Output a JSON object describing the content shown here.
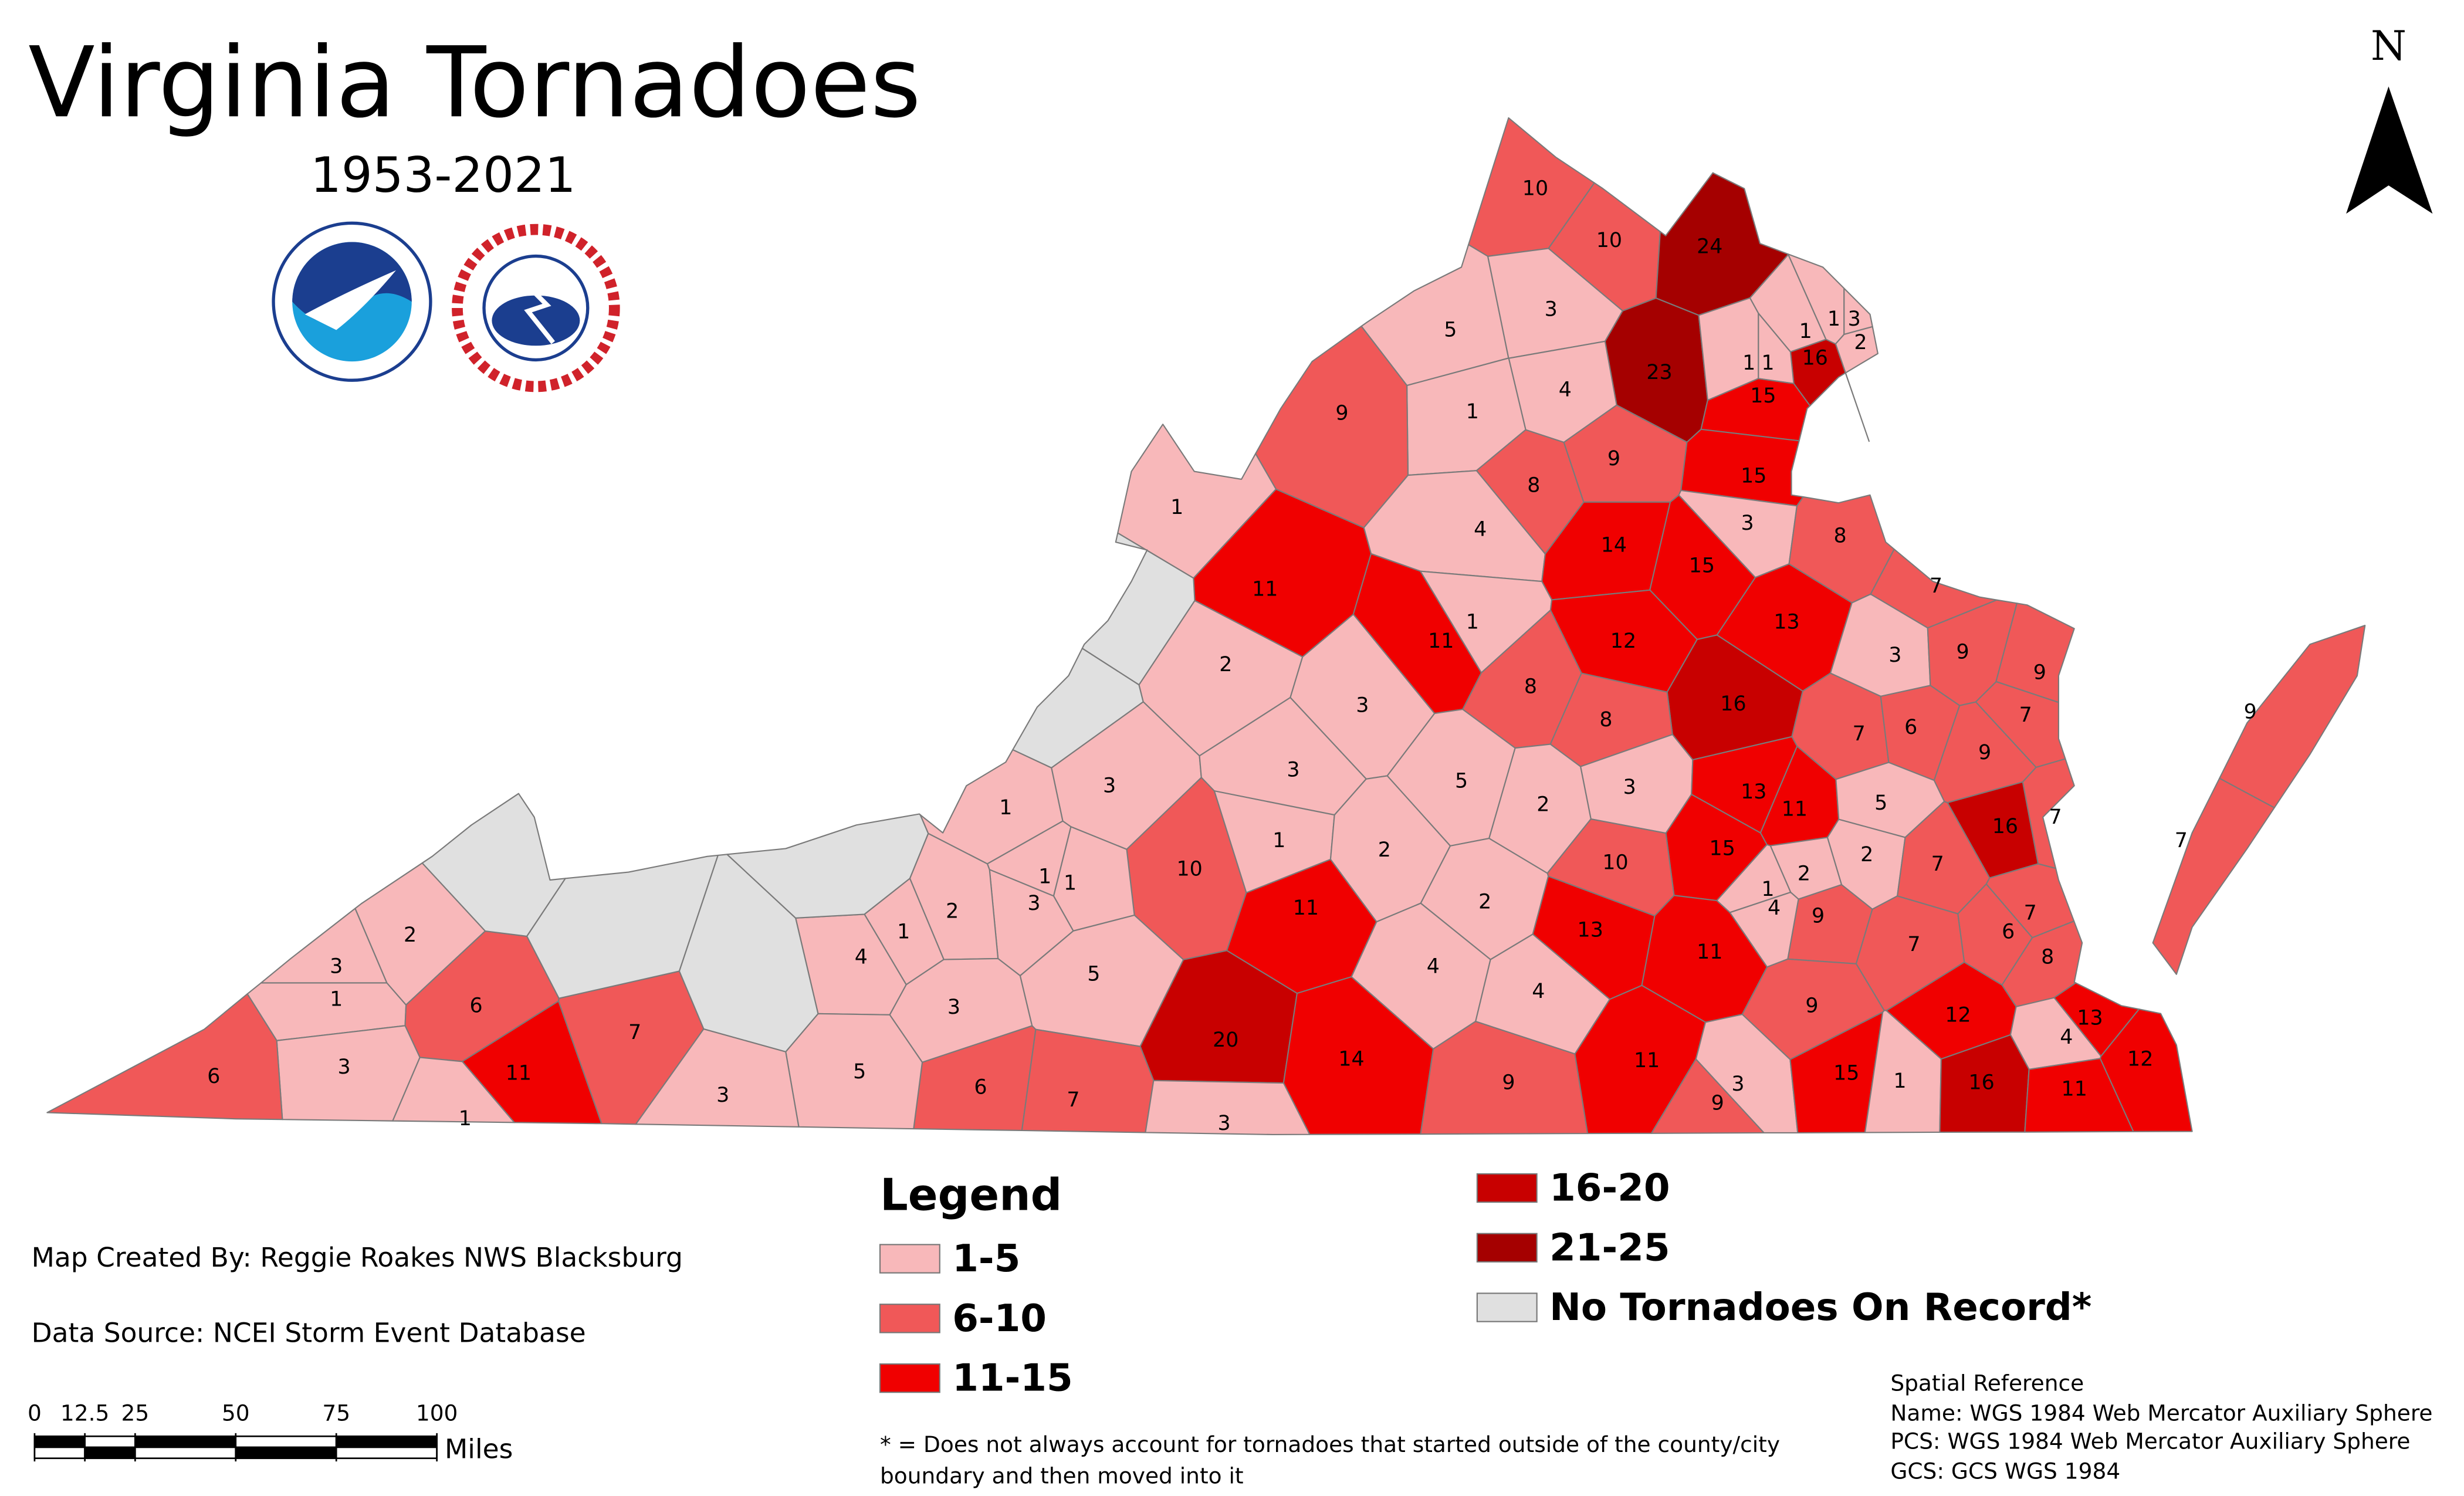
{
  "header": {
    "title": "Virginia Tornadoes",
    "subtitle": "1953-2021",
    "north": "N"
  },
  "legend": {
    "title": "Legend",
    "items": [
      {
        "label": "1-5",
        "color": "#f8b8ba"
      },
      {
        "label": "6-10",
        "color": "#f05858"
      },
      {
        "label": "11-15",
        "color": "#f00000"
      },
      {
        "label": "16-20",
        "color": "#c80000"
      },
      {
        "label": "21-25",
        "color": "#a50000"
      },
      {
        "label": "No Tornadoes On Record*",
        "color": "#e0e0e0"
      }
    ]
  },
  "credits": [
    "Map Created By: Reggie Roakes NWS Blacksburg",
    "Data Source: NCEI Storm Event Database"
  ],
  "footnote": [
    "* = Does not always account for tornadoes that started outside of the county/city",
    "boundary and then moved into it"
  ],
  "scale_bar": {
    "ticks": [
      0,
      12.5,
      25,
      50,
      75,
      100
    ],
    "unit": "Miles"
  },
  "spatial_reference": [
    "Spatial Reference",
    "Name: WGS 1984 Web Mercator Auxiliary Sphere",
    "PCS: WGS 1984 Web Mercator Auxiliary Sphere",
    "GCS: GCS WGS 1984"
  ],
  "counties": [
    {
      "label": 10,
      "color": "#f05858"
    },
    {
      "label": 10,
      "color": "#f05858"
    },
    {
      "label": 24,
      "color": "#a50000"
    },
    {
      "label": 5,
      "color": "#f8b8ba"
    },
    {
      "label": 3,
      "color": "#f8b8ba"
    },
    {
      "label": 23,
      "color": "#a50000"
    },
    {
      "label": 1,
      "color": "#f8b8ba"
    },
    {
      "label": 1,
      "color": "#f8b8ba"
    },
    {
      "label": 3,
      "color": "#f8b8ba"
    },
    {
      "label": 2,
      "color": "#f8b8ba"
    },
    {
      "label": 16,
      "color": "#c80000"
    },
    {
      "label": 1,
      "color": "#f8b8ba"
    },
    {
      "label": 1,
      "color": "#f8b8ba"
    },
    {
      "label": 15,
      "color": "#f00000"
    },
    {
      "label": 4,
      "color": "#f8b8ba"
    },
    {
      "label": 1,
      "color": "#f8b8ba"
    },
    {
      "label": 9,
      "color": "#f05858"
    },
    {
      "label": 8,
      "color": "#f05858"
    },
    {
      "label": 9,
      "color": "#f05858"
    },
    {
      "label": 15,
      "color": "#f00000"
    },
    {
      "label": 3,
      "color": "#f8b8ba"
    },
    {
      "label": 1,
      "color": "#f8b8ba"
    },
    {
      "label": 4,
      "color": "#f8b8ba"
    },
    {
      "label": 14,
      "color": "#f00000"
    },
    {
      "label": 15,
      "color": "#f00000"
    },
    {
      "label": 8,
      "color": "#f05858"
    },
    {
      "label": 7,
      "color": "#f05858"
    },
    {
      "label": 11,
      "color": "#f00000"
    },
    {
      "label": 11,
      "color": "#f00000"
    },
    {
      "label": 1,
      "color": "#f8b8ba"
    },
    {
      "label": 12,
      "color": "#f00000"
    },
    {
      "label": 13,
      "color": "#f00000"
    },
    {
      "label": 3,
      "color": "#f8b8ba"
    },
    {
      "label": 9,
      "color": "#f05858"
    },
    {
      "label": 9,
      "color": "#f05858"
    },
    {
      "label": 7,
      "color": "#f05858"
    },
    {
      "label": 2,
      "color": "#f8b8ba"
    },
    {
      "label": 3,
      "color": "#f8b8ba"
    },
    {
      "label": 8,
      "color": "#f05858"
    },
    {
      "label": 16,
      "color": "#c80000"
    },
    {
      "label": 7,
      "color": "#f05858"
    },
    {
      "label": 6,
      "color": "#f05858"
    },
    {
      "label": 9,
      "color": "#f05858"
    },
    {
      "label": 8,
      "color": "#f05858"
    },
    {
      "label": 3,
      "color": "#f8b8ba"
    },
    {
      "label": 3,
      "color": "#f8b8ba"
    },
    {
      "label": 5,
      "color": "#f8b8ba"
    },
    {
      "label": 3,
      "color": "#f8b8ba"
    },
    {
      "label": 13,
      "color": "#f00000"
    },
    {
      "label": 11,
      "color": "#f00000"
    },
    {
      "label": 5,
      "color": "#f8b8ba"
    },
    {
      "label": 16,
      "color": "#c80000"
    },
    {
      "label": 7,
      "color": "#f05858"
    },
    {
      "label": 1,
      "color": "#f8b8ba"
    },
    {
      "label": 2,
      "color": "#f8b8ba"
    },
    {
      "label": 15,
      "color": "#f00000"
    },
    {
      "label": 2,
      "color": "#f8b8ba"
    },
    {
      "label": 2,
      "color": "#f8b8ba"
    },
    {
      "label": 7,
      "color": "#f05858"
    },
    {
      "label": 1,
      "color": "#f8b8ba"
    },
    {
      "label": 2,
      "color": "#f8b8ba"
    },
    {
      "label": 10,
      "color": "#f05858"
    },
    {
      "label": 10,
      "color": "#f05858"
    },
    {
      "label": 1,
      "color": "#f8b8ba"
    },
    {
      "label": 1,
      "color": "#f8b8ba"
    },
    {
      "label": 3,
      "color": "#f8b8ba"
    },
    {
      "label": 2,
      "color": "#f8b8ba"
    },
    {
      "label": 1,
      "color": "#f8b8ba"
    },
    {
      "label": 4,
      "color": "#f8b8ba"
    },
    {
      "label": 11,
      "color": "#f00000"
    },
    {
      "label": 2,
      "color": "#f8b8ba"
    },
    {
      "label": 1,
      "color": "#f8b8ba"
    },
    {
      "label": 4,
      "color": "#f8b8ba"
    },
    {
      "label": 9,
      "color": "#f05858"
    },
    {
      "label": 7,
      "color": "#f05858"
    },
    {
      "label": 6,
      "color": "#f05858"
    },
    {
      "label": 7,
      "color": "#f05858"
    },
    {
      "label": 8,
      "color": "#f05858"
    },
    {
      "label": 13,
      "color": "#f00000"
    },
    {
      "label": 11,
      "color": "#f00000"
    },
    {
      "label": 3,
      "color": "#f8b8ba"
    },
    {
      "label": 1,
      "color": "#f8b8ba"
    },
    {
      "label": 2,
      "color": "#f8b8ba"
    },
    {
      "label": 6,
      "color": "#f05858"
    },
    {
      "label": 7,
      "color": "#f05858"
    },
    {
      "label": 3,
      "color": "#f8b8ba"
    },
    {
      "label": 5,
      "color": "#f8b8ba"
    },
    {
      "label": 4,
      "color": "#f8b8ba"
    },
    {
      "label": 4,
      "color": "#f8b8ba"
    },
    {
      "label": 9,
      "color": "#f05858"
    },
    {
      "label": 12,
      "color": "#f00000"
    },
    {
      "label": 13,
      "color": "#f00000"
    },
    {
      "label": 4,
      "color": "#f8b8ba"
    },
    {
      "label": 12,
      "color": "#f00000"
    },
    {
      "label": 3,
      "color": "#f8b8ba"
    },
    {
      "label": 11,
      "color": "#f00000"
    },
    {
      "label": 1,
      "color": "#f8b8ba"
    },
    {
      "label": 6,
      "color": "#f05858"
    },
    {
      "label": 20,
      "color": "#c80000"
    },
    {
      "label": 14,
      "color": "#f00000"
    },
    {
      "label": 9,
      "color": "#f05858"
    },
    {
      "label": 11,
      "color": "#f00000"
    },
    {
      "label": 3,
      "color": "#f8b8ba"
    },
    {
      "label": 9,
      "color": "#f05858"
    },
    {
      "label": 15,
      "color": "#f00000"
    },
    {
      "label": 1,
      "color": "#f8b8ba"
    },
    {
      "label": 16,
      "color": "#c80000"
    },
    {
      "label": 11,
      "color": "#f00000"
    },
    {
      "label": 6,
      "color": "#f05858"
    },
    {
      "label": 7,
      "color": "#f05858"
    },
    {
      "label": 5,
      "color": "#f8b8ba"
    },
    {
      "label": 3,
      "color": "#f8b8ba"
    },
    {
      "label": 3,
      "color": "#f8b8ba"
    },
    {
      "label": 9,
      "color": "#f05858"
    },
    {
      "label": 7,
      "color": "#f05858"
    }
  ]
}
